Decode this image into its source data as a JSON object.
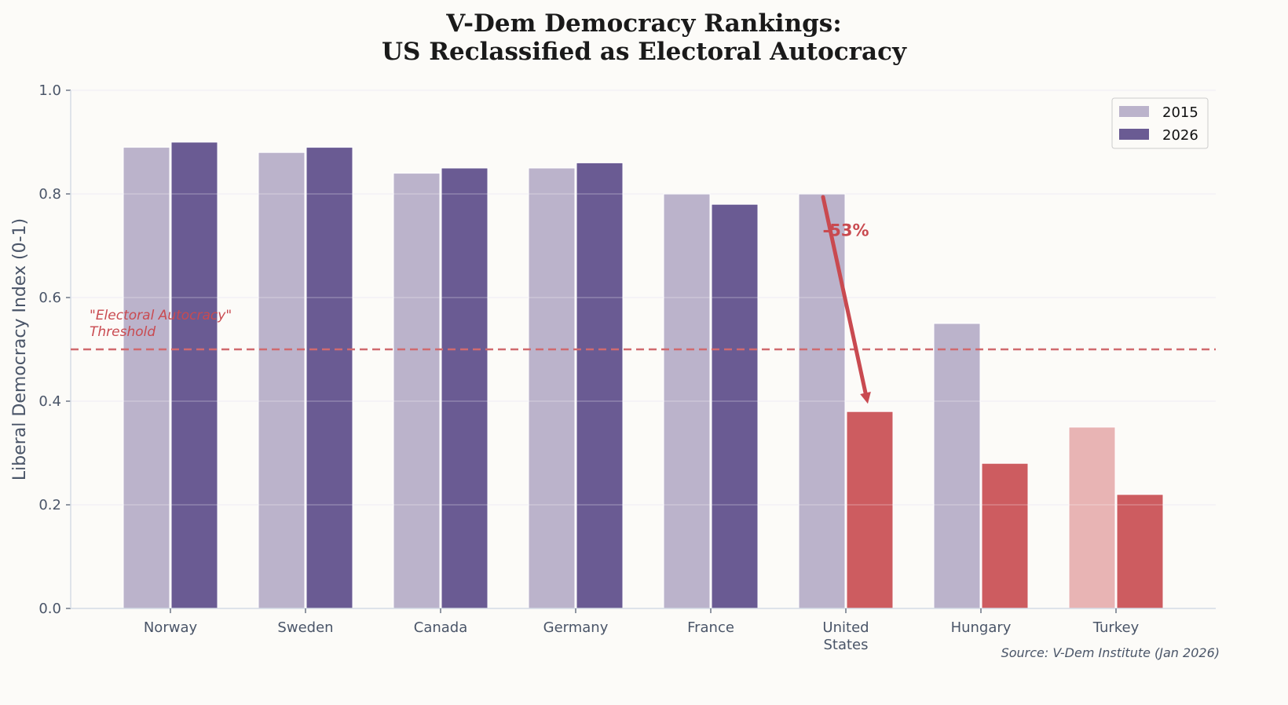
{
  "chart_data": {
    "type": "bar",
    "title_line1": "V-Dem Democracy Rankings:",
    "title_line2": "US Reclassified as Electoral Autocracy",
    "xlabel": "",
    "ylabel": "Liberal Democracy Index (0-1)",
    "ylim": [
      0,
      1.0
    ],
    "yticks": [
      "0.0",
      "0.2",
      "0.4",
      "0.6",
      "0.8",
      "1.0"
    ],
    "grid": "horizontal",
    "categories": [
      "Norway",
      "Sweden",
      "Canada",
      "Germany",
      "France",
      "United\nStates",
      "Hungary",
      "Turkey"
    ],
    "series": [
      {
        "name": "2015",
        "values": [
          0.89,
          0.88,
          0.84,
          0.85,
          0.8,
          0.8,
          0.55,
          0.35
        ]
      },
      {
        "name": "2026",
        "values": [
          0.9,
          0.89,
          0.85,
          0.86,
          0.78,
          0.38,
          0.28,
          0.22
        ]
      }
    ],
    "legend_placement": "top-right",
    "threshold": {
      "value": 0.5,
      "label_line1": "\"Electoral Autocracy\"",
      "label_line2": "Threshold"
    },
    "annotation": {
      "text": "-53%",
      "from": {
        "category": "United\nStates",
        "value": 0.8
      },
      "to": {
        "category": "United\nStates",
        "value": 0.38
      }
    },
    "source": "Source: V-Dem Institute (Jan 2026)",
    "colors": {
      "s2015": "#bbb3cb",
      "s2026": "#6a5b93",
      "autocracy_2026": "#cd5c60",
      "autocracy_2015": "#e8b4b4",
      "threshold": "#d06a6e",
      "annotation": "#c94a50"
    }
  }
}
